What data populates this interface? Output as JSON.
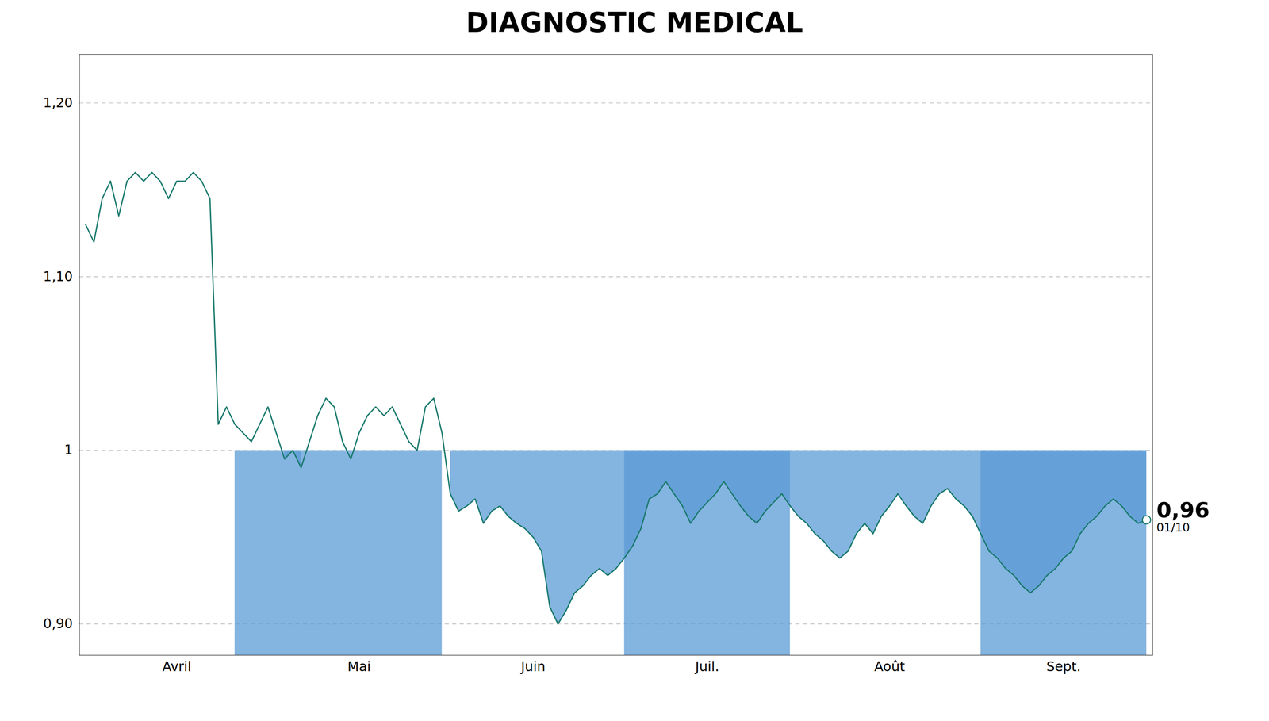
{
  "chart_data": {
    "type": "line",
    "title": "DIAGNOSTIC MEDICAL",
    "categories": [
      null,
      null,
      null,
      null,
      null,
      null,
      null,
      null,
      null,
      null,
      null,
      "Avril",
      null,
      null,
      null,
      null,
      null,
      null,
      null,
      null,
      null,
      null,
      null,
      null,
      null,
      null,
      null,
      null,
      null,
      null,
      null,
      null,
      null,
      "Mai",
      null,
      null,
      null,
      null,
      null,
      null,
      null,
      null,
      null,
      null,
      null,
      null,
      null,
      null,
      null,
      null,
      null,
      null,
      null,
      null,
      "Juin",
      null,
      null,
      null,
      null,
      null,
      null,
      null,
      null,
      null,
      null,
      null,
      null,
      null,
      null,
      null,
      null,
      null,
      null,
      null,
      null,
      "Juil.",
      null,
      null,
      null,
      null,
      null,
      null,
      null,
      null,
      null,
      null,
      null,
      null,
      null,
      null,
      null,
      null,
      null,
      null,
      null,
      null,
      null,
      "Août",
      null,
      null,
      null,
      null,
      null,
      null,
      null,
      null,
      null,
      null,
      null,
      null,
      null,
      null,
      null,
      null,
      null,
      null,
      null,
      null,
      "Sept.",
      null,
      null,
      null,
      null,
      null,
      null,
      null,
      null,
      null,
      null
    ],
    "values": [
      1.13,
      1.12,
      1.145,
      1.155,
      1.135,
      1.155,
      1.16,
      1.155,
      1.16,
      1.155,
      1.145,
      1.155,
      1.155,
      1.16,
      1.155,
      1.145,
      1.015,
      1.025,
      1.015,
      1.01,
      1.005,
      1.015,
      1.025,
      1.01,
      0.995,
      1.0,
      0.99,
      1.005,
      1.02,
      1.03,
      1.025,
      1.005,
      0.995,
      1.01,
      1.02,
      1.025,
      1.02,
      1.025,
      1.015,
      1.005,
      1.0,
      1.025,
      1.03,
      1.01,
      0.975,
      0.965,
      0.968,
      0.972,
      0.958,
      0.965,
      0.968,
      0.962,
      0.958,
      0.955,
      0.95,
      0.942,
      0.91,
      0.9,
      0.908,
      0.918,
      0.922,
      0.928,
      0.932,
      0.928,
      0.932,
      0.938,
      0.945,
      0.955,
      0.972,
      0.975,
      0.982,
      0.975,
      0.968,
      0.958,
      0.965,
      0.97,
      0.975,
      0.982,
      0.975,
      0.968,
      0.962,
      0.958,
      0.965,
      0.97,
      0.975,
      0.968,
      0.962,
      0.958,
      0.952,
      0.948,
      0.942,
      0.938,
      0.942,
      0.952,
      0.958,
      0.952,
      0.962,
      0.968,
      0.975,
      0.968,
      0.962,
      0.958,
      0.968,
      0.975,
      0.978,
      0.972,
      0.968,
      0.962,
      0.952,
      0.942,
      0.938,
      0.932,
      0.928,
      0.922,
      0.918,
      0.922,
      0.928,
      0.932,
      0.938,
      0.942,
      0.952,
      0.958,
      0.962,
      0.968,
      0.972,
      0.968,
      0.962,
      0.958,
      0.96
    ],
    "color": "#1a7a6e",
    "areas": {
      "baseline": 1.0,
      "color": "#5b9bd5",
      "blocks": [
        {
          "start": 18,
          "end": 43
        },
        {
          "start": 65,
          "end": 85
        },
        {
          "start": 108,
          "end": 128
        }
      ]
    },
    "annotations": [
      {
        "text": "0,96"
      },
      {
        "text": "01/10"
      }
    ],
    "ylim": [
      0.882,
      1.228
    ],
    "yticks": [
      {
        "value": 0.9,
        "label": "0,90"
      },
      1,
      {
        "value": 1.1,
        "label": "1,10"
      },
      {
        "value": 1.2,
        "label": "1,20"
      }
    ],
    "grid": true
  }
}
